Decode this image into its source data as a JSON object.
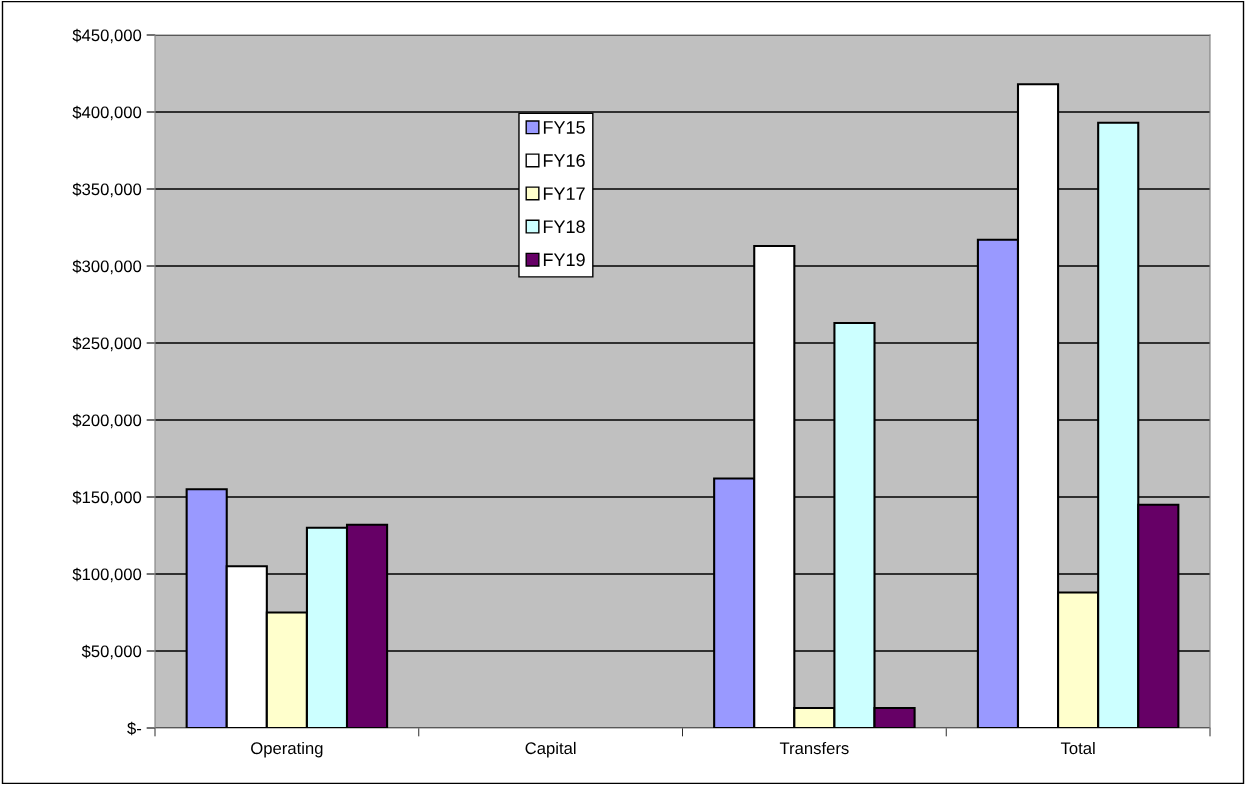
{
  "chart_data": {
    "type": "bar",
    "categories": [
      "Operating",
      "Capital",
      "Transfers",
      "Total"
    ],
    "series": [
      {
        "name": "FY15",
        "color": "#9999ff",
        "values": [
          155000,
          null,
          162000,
          317000
        ]
      },
      {
        "name": "FY16",
        "color": "#ffffff",
        "values": [
          105000,
          null,
          313000,
          418000
        ]
      },
      {
        "name": "FY17",
        "color": "#ffffcc",
        "values": [
          75000,
          null,
          13000,
          88000
        ]
      },
      {
        "name": "FY18",
        "color": "#ccffff",
        "values": [
          130000,
          null,
          263000,
          393000
        ]
      },
      {
        "name": "FY19",
        "color": "#660066",
        "values": [
          132000,
          null,
          13000,
          145000
        ]
      }
    ],
    "ylim": [
      0,
      450000
    ],
    "yticks": [
      {
        "value": 0,
        "label": "$-"
      },
      {
        "value": 50000,
        "label": "$50,000"
      },
      {
        "value": 100000,
        "label": "$100,000"
      },
      {
        "value": 150000,
        "label": "$150,000"
      },
      {
        "value": 200000,
        "label": "$200,000"
      },
      {
        "value": 250000,
        "label": "$250,000"
      },
      {
        "value": 300000,
        "label": "$300,000"
      },
      {
        "value": 350000,
        "label": "$350,000"
      },
      {
        "value": 400000,
        "label": "$400,000"
      },
      {
        "value": 450000,
        "label": "$450,000"
      }
    ],
    "grid": "y",
    "legend": "top"
  }
}
